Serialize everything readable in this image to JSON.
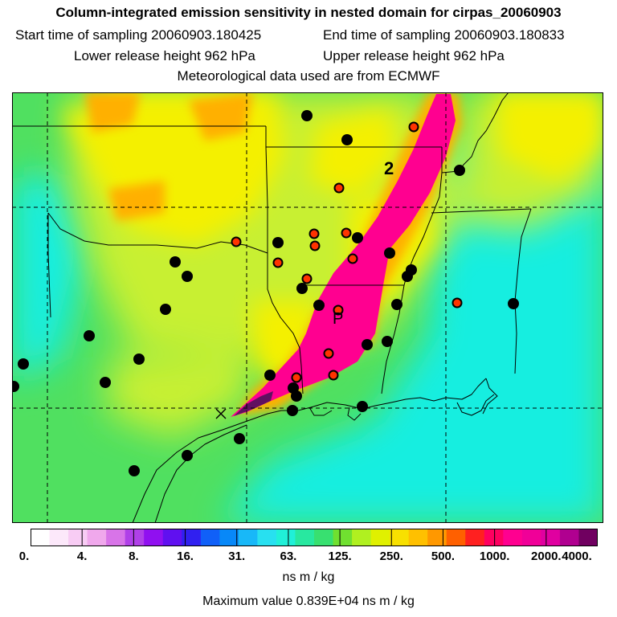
{
  "title": {
    "main": "Column-integrated emission sensitivity in nested domain for cirpas_20060903",
    "start_label": "Start time of sampling 20060903.180425",
    "end_label": "End time of sampling 20060903.180833",
    "lower_label": "Lower release height  962 hPa",
    "upper_label": "Upper release height  962 hPa",
    "met_label": "Meteorological data used are from ECMWF"
  },
  "map": {
    "markers": {
      "day_label_2": "2",
      "plume_label": "P"
    },
    "colors": {
      "background": "#50e060",
      "cyan": "#18eee0",
      "yellow_green": "#c8f030",
      "yellow": "#f4f000",
      "orange": "#ffb000",
      "magenta": "#ff0090",
      "dark_purple": "#601060",
      "dot_black": "#000000",
      "dot_red": "#ff3300"
    }
  },
  "colorbar": {
    "colors": [
      "#ffffff",
      "#fce8fa",
      "#f8ccf4",
      "#f0a8ec",
      "#d874e8",
      "#b040e8",
      "#9010f0",
      "#6010f0",
      "#3020f0",
      "#1060f8",
      "#0888f8",
      "#18b8f8",
      "#28e0f0",
      "#20f0d8",
      "#28e8a0",
      "#38e070",
      "#70e030",
      "#b0f020",
      "#e0f000",
      "#f8e000",
      "#ffc000",
      "#ff9800",
      "#ff6000",
      "#ff2020",
      "#ff0060",
      "#ff0090",
      "#f00098",
      "#e000a0",
      "#b00090",
      "#700060"
    ],
    "tick_labels": [
      "0.",
      "4.",
      "8.",
      "16.",
      "31.",
      "63.",
      "125.",
      "250.",
      "500.",
      "1000.",
      "2000.",
      "4000."
    ],
    "unit": "ns m / kg",
    "max_label": "Maximum value  0.839E+04 ns m / kg"
  }
}
